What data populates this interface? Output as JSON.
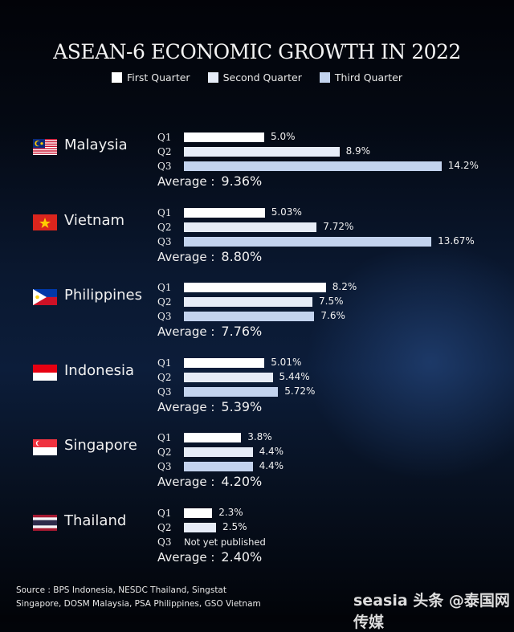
{
  "chart_data": {
    "type": "bar",
    "title": "ASEAN-6 ECONOMIC GROWTH IN 2022",
    "orientation": "horizontal",
    "legend": [
      "First Quarter",
      "Second Quarter",
      "Third Quarter"
    ],
    "legend_placement": "top",
    "colors": [
      "#ffffff",
      "#e6ecf7",
      "#c3d3ee"
    ],
    "quarter_labels": [
      "Q1",
      "Q2",
      "Q3"
    ],
    "average_label": "Average :",
    "countries": [
      {
        "name": "Malaysia",
        "flag": "malaysia",
        "values": [
          5.0,
          8.9,
          14.2
        ],
        "labels": [
          "5.0%",
          "8.9%",
          "14.2%"
        ],
        "average": "9.36%"
      },
      {
        "name": "Vietnam",
        "flag": "vietnam",
        "values": [
          5.03,
          7.72,
          13.67
        ],
        "labels": [
          "5.03%",
          "7.72%",
          "13.67%"
        ],
        "average": "8.80%"
      },
      {
        "name": "Philippines",
        "flag": "philippines",
        "values": [
          8.2,
          7.5,
          7.6
        ],
        "labels": [
          "8.2%",
          "7.5%",
          "7.6%"
        ],
        "average": "7.76%"
      },
      {
        "name": "Indonesia",
        "flag": "indonesia",
        "values": [
          5.01,
          5.44,
          5.72
        ],
        "labels": [
          "5.01%",
          "5.44%",
          "5.72%"
        ],
        "average": "5.39%"
      },
      {
        "name": "Singapore",
        "flag": "singapore",
        "values": [
          3.8,
          4.4,
          4.4
        ],
        "labels": [
          "3.8%",
          "4.4%",
          "4.4%"
        ],
        "average": "4.20%"
      },
      {
        "name": "Thailand",
        "flag": "thailand",
        "values": [
          2.3,
          2.5,
          null
        ],
        "labels": [
          "2.3%",
          "2.5%",
          "Not yet published"
        ],
        "average": "2.40%"
      }
    ]
  },
  "source_lines": [
    "Source : BPS Indonesia, NESDC Thailand, Singstat",
    "Singapore, DOSM Malaysia, PSA Philippines, GSO Vietnam"
  ],
  "watermark": "seasia 头条 @泰国网传媒"
}
